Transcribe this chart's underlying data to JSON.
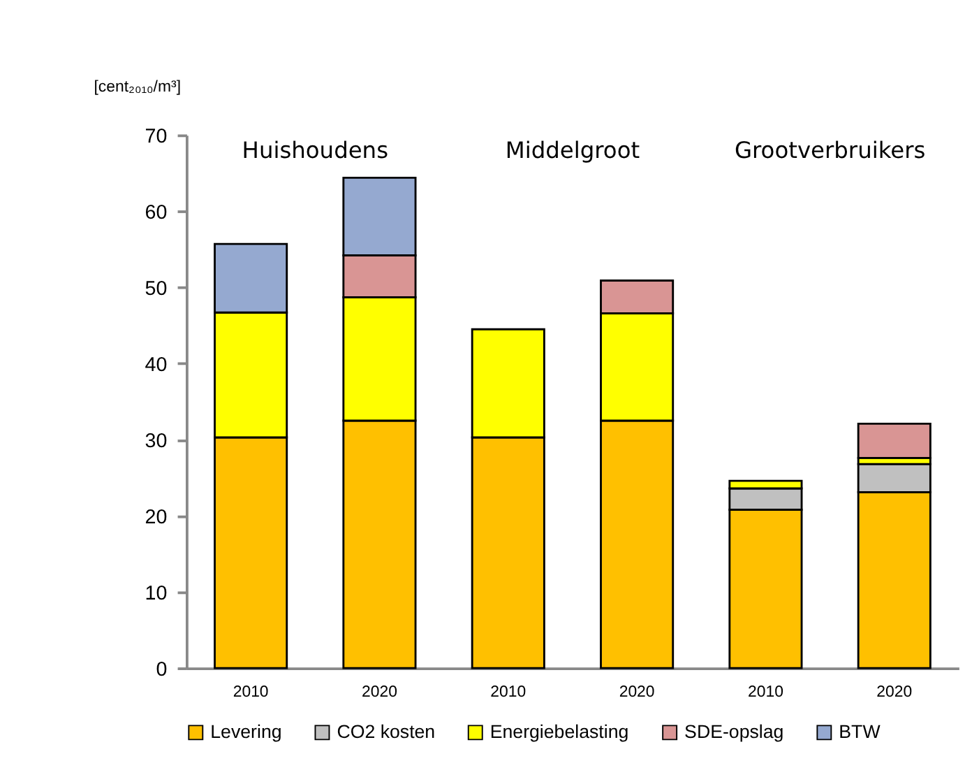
{
  "chart_data": {
    "type": "bar",
    "stacked": true,
    "ylabel": "[cent₂₀₁₀/m³]",
    "categories": [
      "2010",
      "2020",
      "2010",
      "2020",
      "2010",
      "2020"
    ],
    "series": [
      {
        "name": "Levering",
        "color": "#ffc000",
        "values": [
          30.3,
          32.5,
          30.3,
          32.5,
          20.8,
          23.1
        ]
      },
      {
        "name": "CO2 kosten",
        "color": "#c0c0c0",
        "values": [
          null,
          null,
          null,
          null,
          2.8,
          3.7
        ]
      },
      {
        "name": "Energiebelasting",
        "color": "#ffff00",
        "values": [
          16.4,
          16.2,
          14.2,
          14.1,
          1.0,
          0.8
        ]
      },
      {
        "name": "SDE-opslag",
        "color": "#d99594",
        "values": [
          null,
          5.5,
          null,
          4.3,
          null,
          4.5
        ]
      },
      {
        "name": "BTW",
        "color": "#95a9d0",
        "values": [
          9.0,
          10.2,
          null,
          null,
          null,
          null
        ]
      }
    ],
    "annotations": [
      "Huishoudens",
      "Middelgroot",
      "Grootverbruikers"
    ],
    "ylim": [
      0,
      70
    ],
    "yticks": [
      0,
      10,
      20,
      30,
      40,
      50,
      60,
      70
    ],
    "grid": false,
    "legend": "bottom"
  }
}
